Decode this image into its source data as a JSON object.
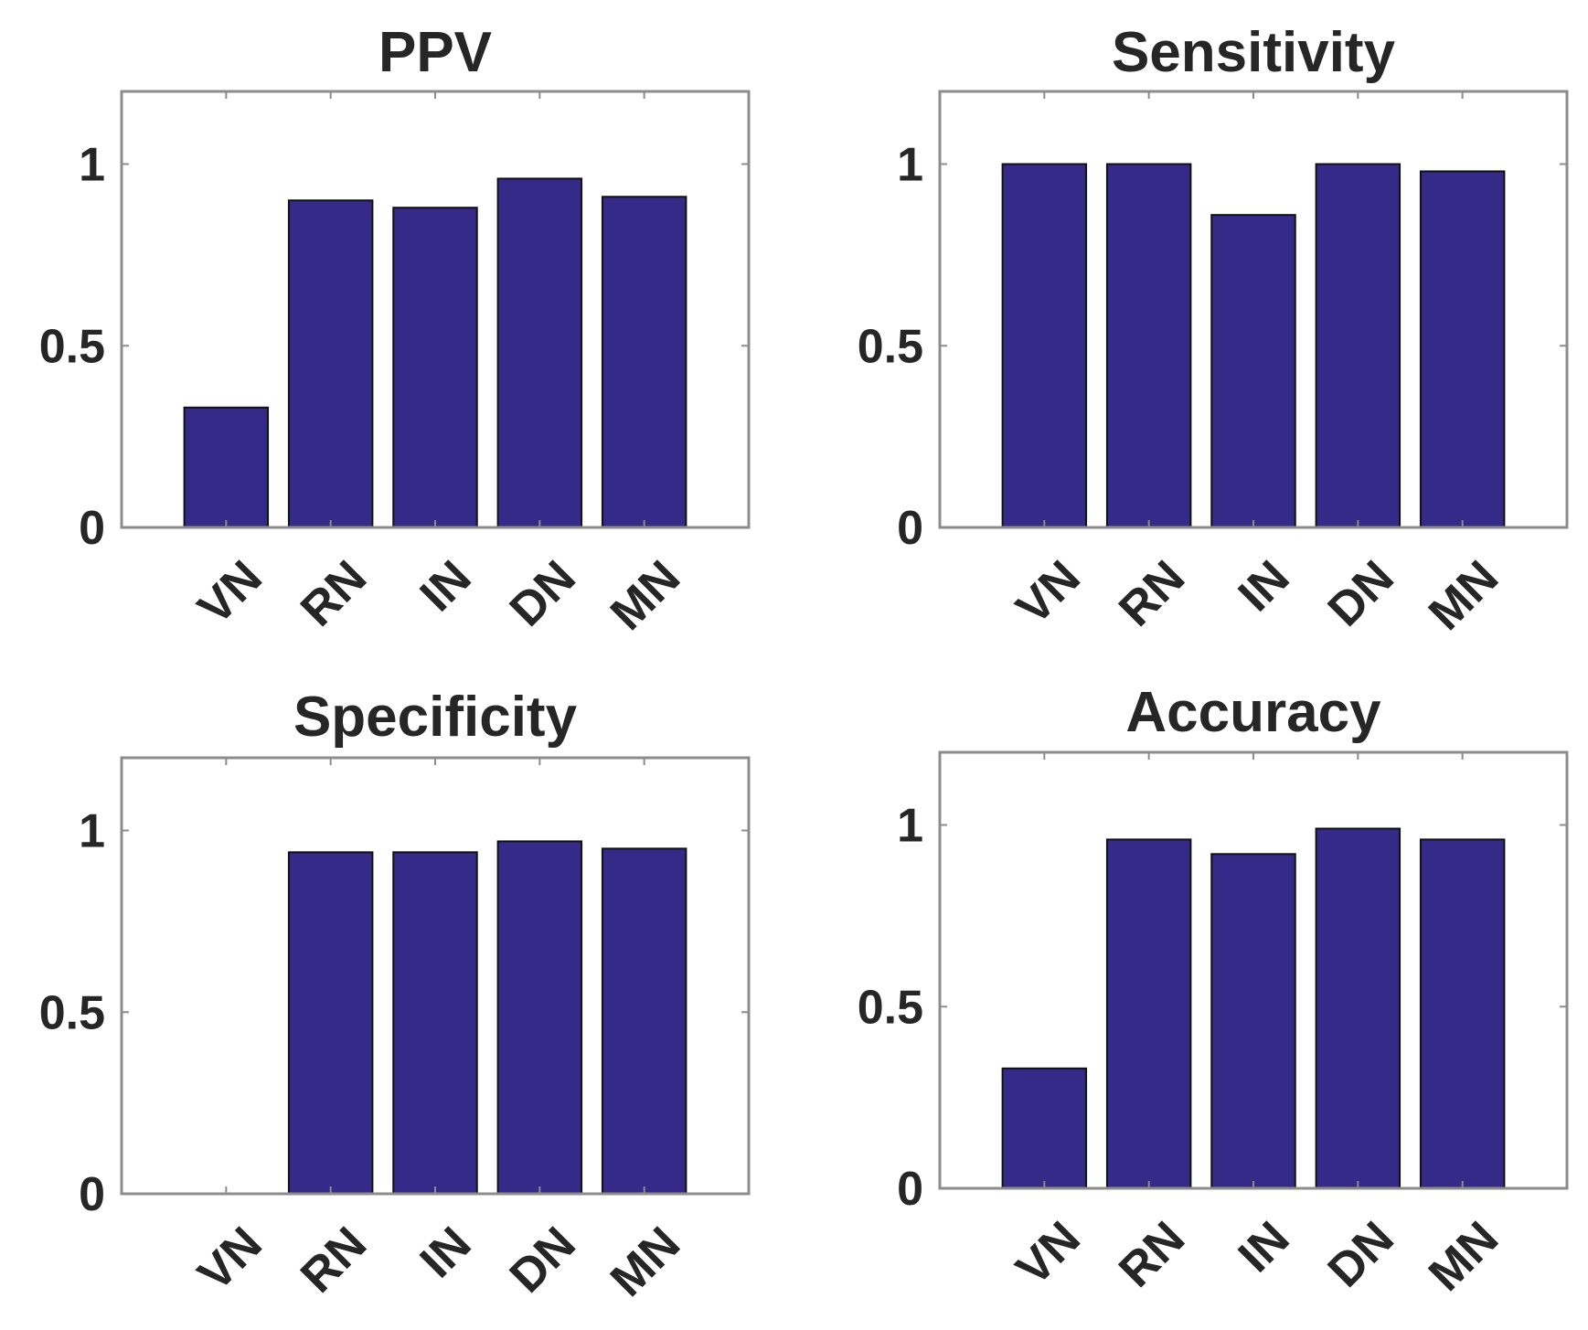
{
  "chart_data": [
    {
      "type": "bar",
      "title": "PPV",
      "categories": [
        "VN",
        "RN",
        "IN",
        "DN",
        "MN"
      ],
      "values": [
        0.33,
        0.9,
        0.88,
        0.96,
        0.91
      ],
      "yticks": [
        "0",
        "0.5",
        "1"
      ],
      "ytick_values": [
        0,
        0.5,
        1
      ],
      "ylim": [
        0,
        1.2
      ],
      "xlabel": "",
      "ylabel": "",
      "bar_color": "#352A87"
    },
    {
      "type": "bar",
      "title": "Sensitivity",
      "categories": [
        "VN",
        "RN",
        "IN",
        "DN",
        "MN"
      ],
      "values": [
        1.0,
        1.0,
        0.86,
        1.0,
        0.98
      ],
      "yticks": [
        "0",
        "0.5",
        "1"
      ],
      "ytick_values": [
        0,
        0.5,
        1
      ],
      "ylim": [
        0,
        1.2
      ],
      "xlabel": "",
      "ylabel": "",
      "bar_color": "#352A87"
    },
    {
      "type": "bar",
      "title": "Specificity",
      "categories": [
        "VN",
        "RN",
        "IN",
        "DN",
        "MN"
      ],
      "values": [
        0,
        0.94,
        0.94,
        0.97,
        0.95
      ],
      "yticks": [
        "0",
        "0.5",
        "1"
      ],
      "ytick_values": [
        0,
        0.5,
        1
      ],
      "ylim": [
        0,
        1.2
      ],
      "xlabel": "",
      "ylabel": "",
      "bar_color": "#352A87"
    },
    {
      "type": "bar",
      "title": "Accuracy",
      "categories": [
        "VN",
        "RN",
        "IN",
        "DN",
        "MN"
      ],
      "values": [
        0.33,
        0.96,
        0.92,
        0.99,
        0.96
      ],
      "yticks": [
        "0",
        "0.5",
        "1"
      ],
      "ytick_values": [
        0,
        0.5,
        1
      ],
      "ylim": [
        0,
        1.2
      ],
      "xlabel": "",
      "ylabel": "",
      "bar_color": "#352A87"
    }
  ]
}
